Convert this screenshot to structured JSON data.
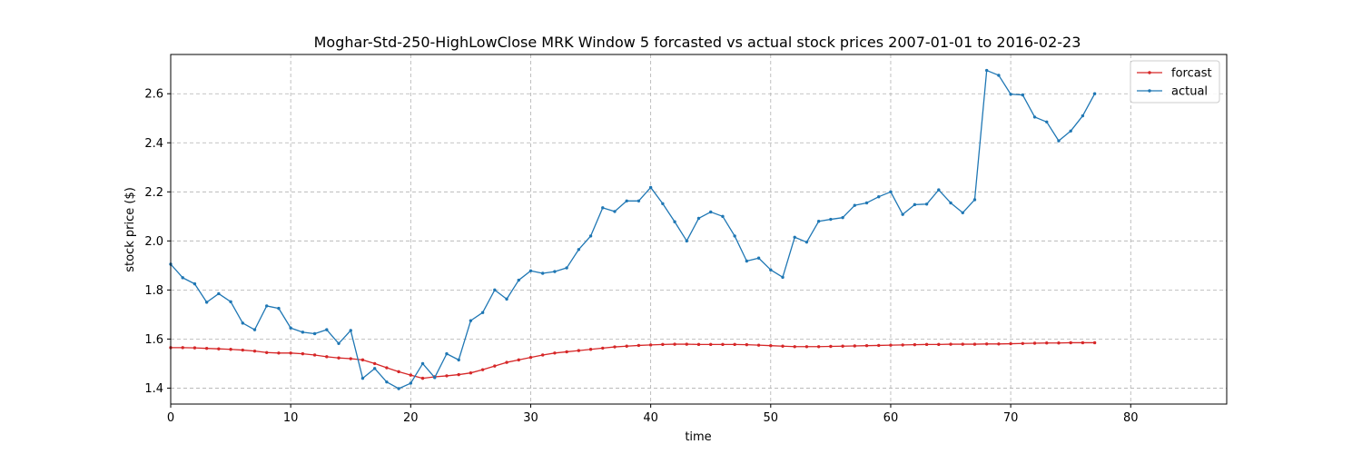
{
  "chart_data": {
    "type": "line",
    "title": "Moghar-Std-250-HighLowClose MRK Window 5 forcasted vs actual stock prices 2007-01-01 to 2016-02-23",
    "xlabel": "time",
    "ylabel": "stock price ($)",
    "xlim": [
      0,
      88
    ],
    "ylim": [
      1.335,
      2.76
    ],
    "xticks": [
      0,
      10,
      20,
      30,
      40,
      50,
      60,
      70,
      80
    ],
    "yticks": [
      1.4,
      1.6,
      1.8,
      2.0,
      2.2,
      2.4,
      2.6
    ],
    "ytick_labels": [
      "1.4",
      "1.6",
      "1.8",
      "2.0",
      "2.2",
      "2.4",
      "2.6"
    ],
    "grid": true,
    "legend_position": "top-right",
    "series": [
      {
        "name": "forcast",
        "color": "#d62728",
        "values": [
          1.565,
          1.565,
          1.564,
          1.562,
          1.56,
          1.558,
          1.555,
          1.551,
          1.545,
          1.543,
          1.543,
          1.54,
          1.535,
          1.528,
          1.523,
          1.52,
          1.515,
          1.5,
          1.483,
          1.467,
          1.453,
          1.44,
          1.446,
          1.45,
          1.455,
          1.462,
          1.475,
          1.49,
          1.505,
          1.515,
          1.525,
          1.535,
          1.543,
          1.548,
          1.553,
          1.558,
          1.563,
          1.568,
          1.571,
          1.574,
          1.576,
          1.578,
          1.579,
          1.579,
          1.578,
          1.578,
          1.578,
          1.578,
          1.577,
          1.575,
          1.573,
          1.571,
          1.569,
          1.569,
          1.569,
          1.57,
          1.571,
          1.572,
          1.573,
          1.574,
          1.575,
          1.576,
          1.577,
          1.578,
          1.578,
          1.579,
          1.579,
          1.579,
          1.58,
          1.58,
          1.581,
          1.582,
          1.583,
          1.584,
          1.584,
          1.585,
          1.585,
          1.585
        ]
      },
      {
        "name": "actual",
        "color": "#1f77b4",
        "values": [
          1.905,
          1.85,
          1.825,
          1.75,
          1.785,
          1.752,
          1.665,
          1.638,
          1.735,
          1.725,
          1.645,
          1.628,
          1.622,
          1.638,
          1.582,
          1.635,
          1.44,
          1.48,
          1.425,
          1.398,
          1.42,
          1.5,
          1.443,
          1.54,
          1.515,
          1.675,
          1.708,
          1.8,
          1.763,
          1.84,
          1.878,
          1.868,
          1.875,
          1.89,
          1.965,
          2.02,
          2.135,
          2.12,
          2.163,
          2.163,
          2.218,
          2.152,
          2.078,
          2.0,
          2.092,
          2.118,
          2.1,
          2.02,
          1.918,
          1.93,
          1.882,
          1.852,
          2.015,
          1.995,
          2.08,
          2.088,
          2.095,
          2.145,
          2.155,
          2.18,
          2.2,
          2.108,
          2.148,
          2.15,
          2.208,
          2.155,
          2.115,
          2.168,
          2.695,
          2.675,
          2.598,
          2.595,
          2.505,
          2.485,
          2.408,
          2.448,
          2.51,
          2.6
        ]
      }
    ]
  }
}
